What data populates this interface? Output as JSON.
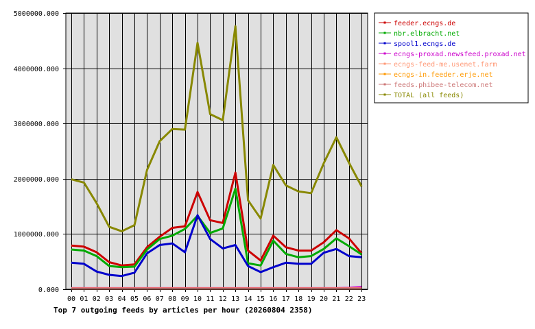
{
  "chart_data": {
    "type": "line",
    "title": "Top 7 outgoing feeds by articles per hour (20260804 2358)",
    "categories": [
      "00",
      "01",
      "02",
      "03",
      "04",
      "05",
      "06",
      "07",
      "08",
      "09",
      "10",
      "11",
      "12",
      "13",
      "14",
      "15",
      "16",
      "17",
      "18",
      "19",
      "20",
      "21",
      "22",
      "23"
    ],
    "ylim": [
      0,
      5000000
    ],
    "yticks": [
      0,
      1000000,
      2000000,
      3000000,
      4000000,
      5000000
    ],
    "ytick_labels": [
      "0.000",
      "1000000.000",
      "2000000.000",
      "3000000.000",
      "4000000.000",
      "5000000.000"
    ],
    "grid": true,
    "legend_position": "right",
    "series": [
      {
        "name": "feeder.ecngs.de",
        "color": "#cc0000",
        "values": [
          790000,
          770000,
          670000,
          490000,
          430000,
          450000,
          760000,
          950000,
          1110000,
          1140000,
          1760000,
          1250000,
          1200000,
          2110000,
          700000,
          520000,
          970000,
          760000,
          700000,
          700000,
          850000,
          1070000,
          920000,
          650000
        ]
      },
      {
        "name": "nbr.elbracht.net",
        "color": "#00aa00",
        "values": [
          720000,
          700000,
          600000,
          420000,
          400000,
          410000,
          720000,
          910000,
          970000,
          1090000,
          1330000,
          1020000,
          1100000,
          1820000,
          470000,
          430000,
          880000,
          640000,
          580000,
          600000,
          730000,
          920000,
          780000,
          630000
        ]
      },
      {
        "name": "spool1.ecngs.de",
        "color": "#0000cc",
        "values": [
          480000,
          460000,
          320000,
          260000,
          240000,
          300000,
          650000,
          800000,
          830000,
          670000,
          1340000,
          910000,
          740000,
          800000,
          420000,
          310000,
          400000,
          480000,
          460000,
          460000,
          660000,
          730000,
          600000,
          580000
        ]
      },
      {
        "name": "ecngs-proxad.newsfeed.proxad.net",
        "color": "#cc00cc",
        "values": [
          20000,
          20000,
          20000,
          20000,
          20000,
          20000,
          20000,
          20000,
          20000,
          20000,
          20000,
          20000,
          20000,
          20000,
          20000,
          20000,
          20000,
          20000,
          20000,
          20000,
          20000,
          20000,
          25000,
          40000
        ]
      },
      {
        "name": "ecngs-feed-me.usenet.farm",
        "color": "#ff9977",
        "values": [
          15000,
          15000,
          15000,
          15000,
          15000,
          15000,
          15000,
          15000,
          15000,
          15000,
          15000,
          15000,
          15000,
          15000,
          15000,
          15000,
          15000,
          15000,
          15000,
          15000,
          15000,
          15000,
          15000,
          15000
        ]
      },
      {
        "name": "ecngs-in.feeder.erje.net",
        "color": "#ff9900",
        "values": [
          10000,
          10000,
          10000,
          10000,
          10000,
          10000,
          10000,
          10000,
          10000,
          10000,
          10000,
          10000,
          10000,
          10000,
          10000,
          10000,
          10000,
          10000,
          10000,
          10000,
          10000,
          10000,
          10000,
          10000
        ]
      },
      {
        "name": "feeds.phibee-telecom.net",
        "color": "#cc7777",
        "values": [
          8000,
          8000,
          8000,
          8000,
          8000,
          8000,
          8000,
          8000,
          8000,
          8000,
          8000,
          8000,
          8000,
          8000,
          8000,
          8000,
          8000,
          8000,
          8000,
          8000,
          8000,
          8000,
          8000,
          8000
        ]
      },
      {
        "name": "TOTAL (all feeds)",
        "color": "#888800",
        "values": [
          1990000,
          1930000,
          1560000,
          1130000,
          1050000,
          1160000,
          2160000,
          2680000,
          2900000,
          2890000,
          4460000,
          3170000,
          3060000,
          4760000,
          1610000,
          1280000,
          2250000,
          1880000,
          1770000,
          1740000,
          2280000,
          2750000,
          2290000,
          1860000
        ]
      }
    ]
  }
}
